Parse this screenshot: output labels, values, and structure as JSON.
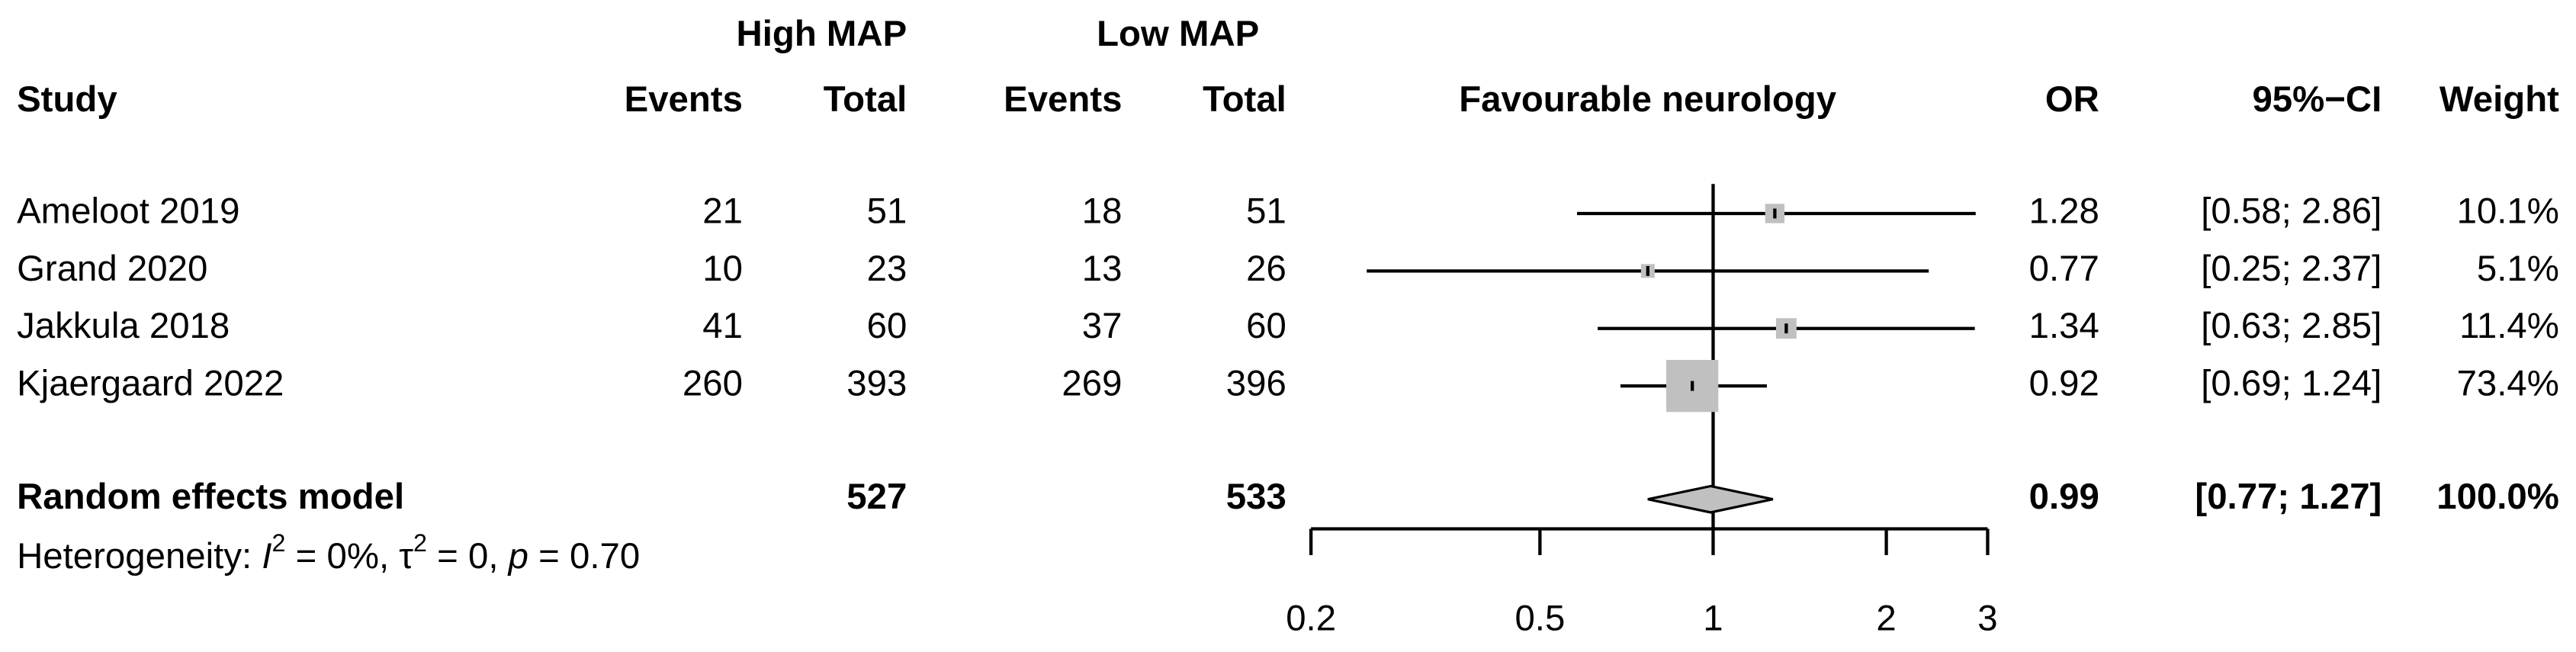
{
  "chart_data": {
    "type": "forest",
    "group_headers": [
      "High MAP",
      "Low MAP"
    ],
    "column_headers": {
      "study": "Study",
      "events_high": "Events",
      "total_high": "Total",
      "events_low": "Events",
      "total_low": "Total",
      "plot": "Favourable neurology",
      "or": "OR",
      "ci": "95%−CI",
      "weight": "Weight"
    },
    "studies": [
      {
        "name": "Ameloot 2019",
        "events_high": 21,
        "total_high": 51,
        "events_low": 18,
        "total_low": 51,
        "or": 1.28,
        "ci_lower": 0.58,
        "ci_upper": 2.86,
        "ci_label": "[0.58; 2.86]",
        "weight": 10.1,
        "weight_label": "10.1%"
      },
      {
        "name": "Grand 2020",
        "events_high": 10,
        "total_high": 23,
        "events_low": 13,
        "total_low": 26,
        "or": 0.77,
        "ci_lower": 0.25,
        "ci_upper": 2.37,
        "ci_label": "[0.25; 2.37]",
        "weight": 5.1,
        "weight_label": "5.1%"
      },
      {
        "name": "Jakkula 2018",
        "events_high": 41,
        "total_high": 60,
        "events_low": 37,
        "total_low": 60,
        "or": 1.34,
        "ci_lower": 0.63,
        "ci_upper": 2.85,
        "ci_label": "[0.63; 2.85]",
        "weight": 11.4,
        "weight_label": "11.4%"
      },
      {
        "name": "Kjaergaard 2022",
        "events_high": 260,
        "total_high": 393,
        "events_low": 269,
        "total_low": 396,
        "or": 0.92,
        "ci_lower": 0.69,
        "ci_upper": 1.24,
        "ci_label": "[0.69; 1.24]",
        "weight": 73.4,
        "weight_label": "73.4%"
      }
    ],
    "summary": {
      "name": "Random effects model",
      "total_high": 527,
      "total_low": 533,
      "or": 0.99,
      "ci_lower": 0.77,
      "ci_upper": 1.27,
      "ci_label": "[0.77; 1.27]",
      "weight": 100.0,
      "weight_label": "100.0%"
    },
    "heterogeneity": [
      {
        "text": "Heterogeneity: "
      },
      {
        "text": "I",
        "italic": true
      },
      {
        "text": "2",
        "sup": true
      },
      {
        "text": " = 0%, τ"
      },
      {
        "text": "2",
        "sup": true
      },
      {
        "text": " = 0, "
      },
      {
        "text": "p",
        "italic": true
      },
      {
        "text": " = 0.70"
      }
    ],
    "log_scale": true,
    "xlim": [
      0.2,
      3
    ],
    "xticks": [
      0.2,
      0.5,
      1,
      2,
      3
    ],
    "box_color": "#c0c0c0",
    "line_color": "#000000"
  }
}
